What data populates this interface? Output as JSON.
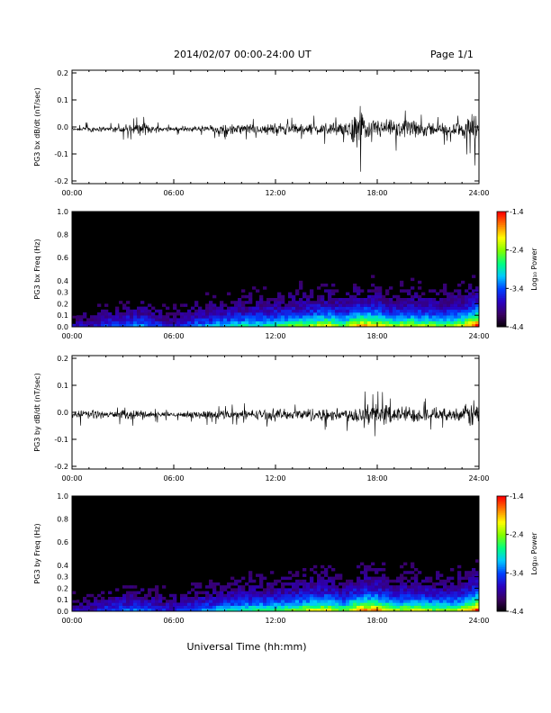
{
  "header": {
    "date_range": "2014/02/07  00:00-24:00 UT",
    "page": "Page 1/1"
  },
  "colors": {
    "background": "#ffffff",
    "axis": "#000000",
    "waveform": "#000000",
    "spectrogram_floor": "#000000"
  },
  "colorbar": {
    "label": "Log₁₀ Power",
    "min": -4.4,
    "max": -1.4,
    "tick_labels": [
      "-1.4",
      "-2.4",
      "-3.4",
      "-4.4"
    ],
    "colormap": [
      "#000000",
      "#3a0060",
      "#2a00c0",
      "#0040ff",
      "#00c8ff",
      "#00ff80",
      "#80ff00",
      "#ffff00",
      "#ff8000",
      "#ff0000"
    ]
  },
  "xaxis": {
    "label": "Universal Time (hh:mm)",
    "tick_labels": [
      "00:00",
      "06:00",
      "12:00",
      "18:00",
      "24:00"
    ]
  },
  "chart_data": [
    {
      "type": "line",
      "ylabel": "PG3 bx dB/dt (nT/sec)",
      "xlabel": "",
      "x_units": "hours UT",
      "xlim": [
        0,
        24
      ],
      "ylim": [
        -0.21,
        0.21
      ],
      "ytick_labels": [
        "0.2",
        "0.1",
        "0.0",
        "-0.1",
        "-0.2"
      ],
      "yticks": [
        0.2,
        0.1,
        0.0,
        -0.1,
        -0.2
      ],
      "x": [
        0,
        1,
        2,
        3,
        4,
        5,
        6,
        7,
        8,
        9,
        10,
        11,
        12,
        13,
        14,
        15,
        16,
        17,
        17.2,
        18,
        19,
        20,
        21,
        22,
        23,
        23.9,
        24
      ],
      "envelope_max": [
        0.01,
        0.03,
        0.02,
        0.03,
        0.06,
        0.03,
        0.02,
        0.03,
        0.04,
        0.05,
        0.05,
        0.05,
        0.06,
        0.05,
        0.06,
        0.06,
        0.05,
        0.2,
        0.12,
        0.09,
        0.07,
        0.08,
        0.06,
        0.05,
        0.06,
        0.2,
        0.21
      ],
      "envelope_min": [
        -0.01,
        -0.03,
        -0.02,
        -0.04,
        -0.05,
        -0.03,
        -0.02,
        -0.03,
        -0.03,
        -0.04,
        -0.04,
        -0.04,
        -0.05,
        -0.04,
        -0.05,
        -0.06,
        -0.05,
        -0.17,
        -0.12,
        -0.1,
        -0.08,
        -0.09,
        -0.07,
        -0.06,
        -0.07,
        -0.15,
        -0.21
      ]
    },
    {
      "type": "heatmap",
      "ylabel": "PG3 bx Freq (Hz)",
      "xlabel": "",
      "xlim": [
        0,
        24
      ],
      "ylim": [
        0,
        1.0
      ],
      "ytick_labels": [
        "1.0",
        "0.8",
        "0.6",
        "0.4",
        "0.3",
        "0.2",
        "0.1",
        "0.0"
      ],
      "yticks": [
        1.0,
        0.8,
        0.6,
        0.4,
        0.3,
        0.2,
        0.1,
        0.0
      ],
      "z_units": "Log10 Power",
      "zlim": [
        -4.4,
        -1.4
      ],
      "activity_hours": [
        0,
        1,
        2,
        3,
        4,
        5,
        6,
        7,
        8,
        9,
        10,
        11,
        12,
        13,
        14,
        15,
        16,
        17,
        18,
        19,
        20,
        21,
        22,
        23,
        24
      ],
      "activity_level": [
        0.2,
        0.2,
        0.3,
        0.35,
        0.4,
        0.3,
        0.25,
        0.35,
        0.4,
        0.45,
        0.5,
        0.5,
        0.55,
        0.6,
        0.65,
        0.75,
        0.6,
        0.85,
        0.8,
        0.65,
        0.7,
        0.65,
        0.6,
        0.7,
        1.0
      ]
    },
    {
      "type": "line",
      "ylabel": "PG3 by dB/dt (nT/sec)",
      "xlabel": "",
      "x_units": "hours UT",
      "xlim": [
        0,
        24
      ],
      "ylim": [
        -0.21,
        0.21
      ],
      "ytick_labels": [
        "0.2",
        "0.1",
        "0.0",
        "-0.1",
        "-0.2"
      ],
      "yticks": [
        0.2,
        0.1,
        0.0,
        -0.1,
        -0.2
      ],
      "x": [
        0,
        1,
        2,
        3,
        4,
        5,
        6,
        7,
        8,
        9,
        10,
        11,
        12,
        13,
        14,
        15,
        16,
        17,
        17.2,
        18,
        19,
        20,
        21,
        22,
        23,
        23.9,
        24
      ],
      "envelope_max": [
        0.01,
        0.02,
        0.02,
        0.03,
        0.04,
        0.02,
        0.02,
        0.03,
        0.04,
        0.04,
        0.04,
        0.05,
        0.06,
        0.04,
        0.06,
        0.05,
        0.05,
        0.08,
        0.12,
        0.1,
        0.08,
        0.07,
        0.06,
        0.05,
        0.06,
        0.15,
        0.12
      ],
      "envelope_min": [
        -0.01,
        -0.09,
        -0.03,
        -0.04,
        -0.05,
        -0.03,
        -0.02,
        -0.03,
        -0.04,
        -0.04,
        -0.04,
        -0.04,
        -0.05,
        -0.04,
        -0.06,
        -0.06,
        -0.06,
        -0.1,
        -0.14,
        -0.09,
        -0.08,
        -0.08,
        -0.06,
        -0.05,
        -0.06,
        -0.19,
        -0.2
      ]
    },
    {
      "type": "heatmap",
      "ylabel": "PG3 by Freq (Hz)",
      "xlabel": "Universal Time (hh:mm)",
      "xlim": [
        0,
        24
      ],
      "ylim": [
        0,
        1.0
      ],
      "ytick_labels": [
        "1.0",
        "0.8",
        "0.6",
        "0.4",
        "0.3",
        "0.2",
        "0.1",
        "0.0"
      ],
      "yticks": [
        1.0,
        0.8,
        0.6,
        0.4,
        0.3,
        0.2,
        0.1,
        0.0
      ],
      "z_units": "Log10 Power",
      "zlim": [
        -4.4,
        -1.4
      ],
      "activity_hours": [
        0,
        1,
        2,
        3,
        4,
        5,
        6,
        7,
        8,
        9,
        10,
        11,
        12,
        13,
        14,
        15,
        16,
        17,
        18,
        19,
        20,
        21,
        22,
        23,
        24
      ],
      "activity_level": [
        0.2,
        0.2,
        0.3,
        0.35,
        0.35,
        0.3,
        0.25,
        0.35,
        0.4,
        0.45,
        0.5,
        0.55,
        0.55,
        0.6,
        0.7,
        0.75,
        0.6,
        0.85,
        0.85,
        0.65,
        0.7,
        0.65,
        0.6,
        0.7,
        1.0
      ]
    }
  ]
}
